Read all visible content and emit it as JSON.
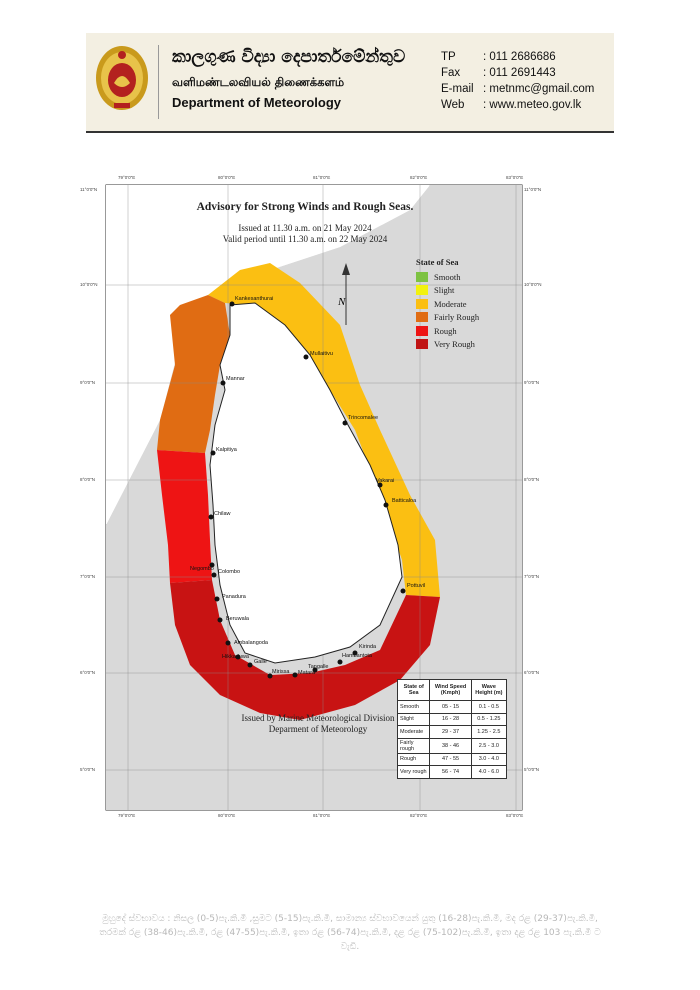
{
  "header": {
    "name_sinhala": "කාලගුණ විද්‍යා දෙපාර්තමේන්තුව",
    "name_tamil": "வளிமண்டலவியல் திணைக்களம்",
    "name_english": "Department of Meteorology",
    "contacts": [
      {
        "key": "TP",
        "value": ": 011 2686686"
      },
      {
        "key": "Fax",
        "value": ": 011 2691443"
      },
      {
        "key": "E-mail",
        "value": ": metnmc@gmail.com"
      },
      {
        "key": "Web",
        "value": ": www.meteo.gov.lk"
      }
    ],
    "colors": {
      "background": "#f3efe2",
      "seal_gold": "#c99a1c",
      "seal_red": "#b3211f"
    }
  },
  "map": {
    "title": "Advisory for Strong Winds and Rough Seas.",
    "issued_line1": "Issued at 11.30 a.m. on 21 May 2024",
    "issued_line2": "Valid period until 11.30 a.m. on 22 May 2024",
    "north_label": "N",
    "legend": {
      "title": "State of Sea",
      "items": [
        {
          "label": "Smooth",
          "color": "#7dc242"
        },
        {
          "label": "Slight",
          "color": "#f2f20f"
        },
        {
          "label": "Moderate",
          "color": "#fbbf12"
        },
        {
          "label": "Fairly Rough",
          "color": "#e06c13"
        },
        {
          "label": "Rough",
          "color": "#ee1414"
        },
        {
          "label": "Very Rough",
          "color": "#c01414"
        }
      ]
    },
    "zone_colors": {
      "moderate": "#fbbf12",
      "fairly_rough": "#e06c13",
      "rough": "#ee1414",
      "very_rough": "#c81313",
      "land": "#ffffff",
      "sea": "#d9d9d9"
    },
    "places": [
      "Kankesanthurai",
      "Mullaitivu",
      "Mannar",
      "Trincomalee",
      "Kalpitiya",
      "Vakarai",
      "Batticaloa",
      "Chilaw",
      "Negombo",
      "Colombo",
      "Pottuvil",
      "Panadura",
      "Beruwala",
      "Ambalangoda",
      "Hikkaduwa",
      "Galle",
      "Hambantota",
      "Kirinda",
      "Tangalle",
      "Matara",
      "Mirissa"
    ],
    "footer_line1": "Issued by Marine Meteorological Division",
    "footer_line2": "Deparment of Meteorology",
    "table": {
      "headers": [
        "State of Sea",
        "Wind Speed (Kmph)",
        "Wave Height (m)"
      ],
      "rows": [
        [
          "Smooth",
          "05 - 15",
          "0.1 - 0.5"
        ],
        [
          "Slight",
          "16 - 28",
          "0.5 - 1.25"
        ],
        [
          "Moderate",
          "29 - 37",
          "1.25 - 2.5"
        ],
        [
          "Fairly rough",
          "38 - 46",
          "2.5 - 3.0"
        ],
        [
          "Rough",
          "47 - 55",
          "3.0 - 4.0"
        ],
        [
          "Very rough",
          "56 - 74",
          "4.0 - 6.0"
        ]
      ]
    },
    "lon_ticks": [
      "79°0'0\"E",
      "80°0'0\"E",
      "81°0'0\"E",
      "82°0'0\"E",
      "83°0'0\"E"
    ],
    "lat_ticks": [
      "11°0'0\"N",
      "10°0'0\"N",
      "9°0'0\"N",
      "8°0'0\"N",
      "7°0'0\"N",
      "6°0'0\"N",
      "5°0'0\"N"
    ]
  },
  "bottom_note": "මුහුදේ ස්වභාවය : නිසල (0-5)පැ.කි.මී ,සුමට (5-15)පැ.කි.මී, සාමාන්‍ය ස්වභාවයෙන් යුතු (16-28)පැ.කි.මී, මද රළ (29-37)පැ.කි.මී, තරමක් රළ (38-46)පැ.කි.මී, රළ (47-55)පැ.කි.මී, ඉතා රළ (56-74)පැ.කි.මී, දළ රළ (75-102)පැ.කි.මී, ඉතා දළ රළ 103 පැ.කි.මී ට වැඩි."
}
